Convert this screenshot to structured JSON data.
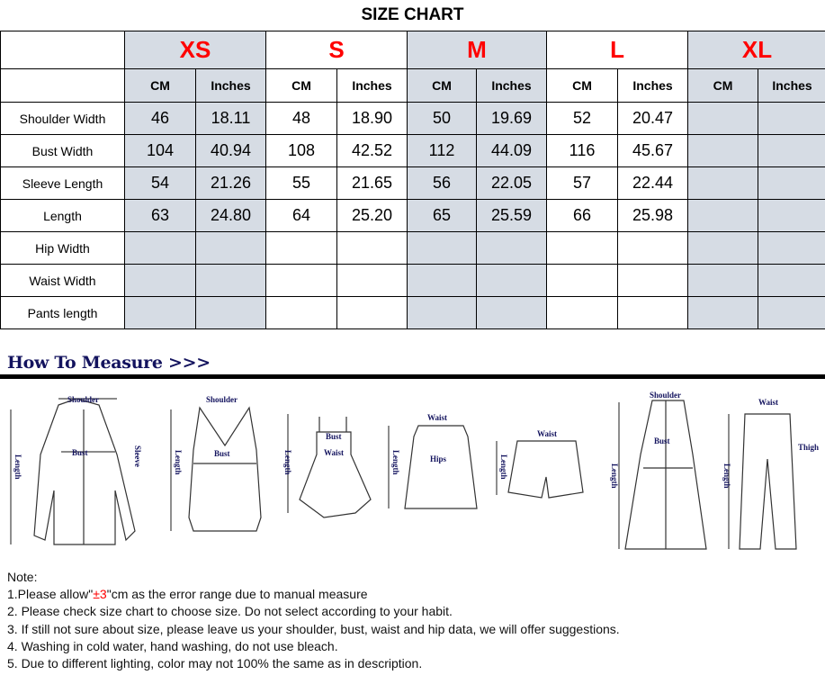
{
  "title": "SIZE CHART",
  "sizes": [
    "XS",
    "S",
    "M",
    "L",
    "XL"
  ],
  "units": [
    "CM",
    "Inches"
  ],
  "rows": [
    {
      "label": "Shoulder Width",
      "values": [
        "46",
        "18.11",
        "48",
        "18.90",
        "50",
        "19.69",
        "52",
        "20.47",
        "",
        ""
      ]
    },
    {
      "label": "Bust Width",
      "values": [
        "104",
        "40.94",
        "108",
        "42.52",
        "112",
        "44.09",
        "116",
        "45.67",
        "",
        ""
      ]
    },
    {
      "label": "Sleeve Length",
      "values": [
        "54",
        "21.26",
        "55",
        "21.65",
        "56",
        "22.05",
        "57",
        "22.44",
        "",
        ""
      ]
    },
    {
      "label": "Length",
      "values": [
        "63",
        "24.80",
        "64",
        "25.20",
        "65",
        "25.59",
        "66",
        "25.98",
        "",
        ""
      ]
    },
    {
      "label": "Hip Width",
      "values": [
        "",
        "",
        "",
        "",
        "",
        "",
        "",
        "",
        "",
        ""
      ]
    },
    {
      "label": "Waist Width",
      "values": [
        "",
        "",
        "",
        "",
        "",
        "",
        "",
        "",
        "",
        ""
      ]
    },
    {
      "label": "Pants length",
      "values": [
        "",
        "",
        "",
        "",
        "",
        "",
        "",
        "",
        "",
        ""
      ]
    }
  ],
  "colors": {
    "size_label": "#ff0000",
    "shaded": "#d6dce4",
    "measure_heading": "#13135e"
  },
  "how_to_measure": {
    "heading": "How To Measure >>>",
    "labels": {
      "shoulder": "Shoulder",
      "bust": "Bust",
      "sleeve": "Sleeve",
      "length": "Length",
      "waist": "Waist",
      "hips": "Hips",
      "thigh": "Thigh"
    }
  },
  "notes": {
    "heading": "Note:",
    "line1_pre": "1.Please allow\"",
    "line1_red": "±3",
    "line1_post": "\"cm as the error range due to manual measure",
    "line2": "2. Please check size chart to choose size. Do not select according to your habit.",
    "line3": "3. If still not sure about size, please leave us your shoulder, bust, waist and hip data, we will offer suggestions.",
    "line4": "4. Washing in cold water, hand washing, do not use bleach.",
    "line5": "5. Due to different lighting, color may not 100% the same as in description."
  }
}
